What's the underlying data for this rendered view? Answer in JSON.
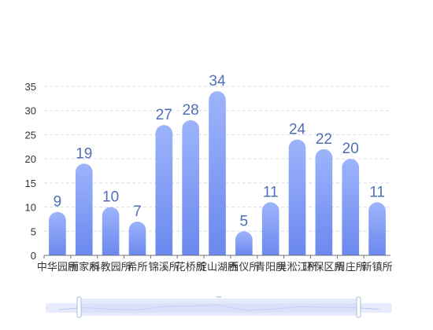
{
  "chart_data": {
    "type": "bar",
    "categories": [
      "中华园所",
      "丽家所",
      "科教园所",
      "希所",
      "锦溪所",
      "花桥所",
      "淀山湖所",
      "西仪所",
      "青阳所",
      "吴淞江所",
      "环保区所",
      "周庄所",
      "新镇所"
    ],
    "values": [
      9,
      19,
      10,
      7,
      27,
      28,
      34,
      5,
      11,
      24,
      22,
      20,
      11
    ],
    "xlabel": "",
    "ylabel": "",
    "ylim": [
      0,
      35
    ],
    "yticks": [
      0,
      5,
      10,
      15,
      20,
      25,
      30,
      35
    ],
    "grid": true,
    "data_labels": true,
    "colors": {
      "bar_top": "#9db4fb",
      "bar_bottom": "#6b88ee",
      "label": "#4f6fb8",
      "axis_text": "#333333",
      "grid": "#d8dde8",
      "slider_track": "#e6ecfb",
      "slider_window": "#cfdaf8",
      "slider_handle": "#aebbe0"
    },
    "data_zoom": {
      "present": true,
      "range_percent": [
        10,
        90
      ]
    }
  }
}
